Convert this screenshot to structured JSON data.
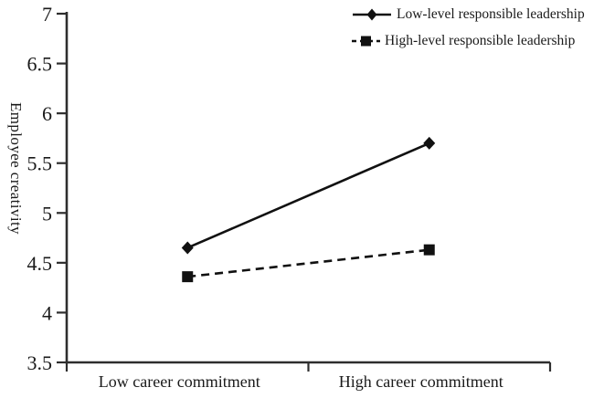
{
  "figure": {
    "background": "#ffffff",
    "ink_color": "#1a1a1a",
    "axis_color": "#2e2e2e"
  },
  "chart_data": {
    "type": "line",
    "title": "",
    "xlabel": "",
    "ylabel": "Employee creativity",
    "ylim": [
      3.5,
      7
    ],
    "yticks": [
      3.5,
      4,
      4.5,
      5,
      5.5,
      6,
      6.5,
      7
    ],
    "categories": [
      "Low career commitment",
      "High career commitment"
    ],
    "series": [
      {
        "name": "Low-level responsible leadership",
        "values": [
          4.65,
          5.7
        ],
        "line_style": "solid",
        "marker": "diamond",
        "color": "#111111"
      },
      {
        "name": "High-level responsible leadership",
        "values": [
          4.36,
          4.63
        ],
        "line_style": "dashed",
        "marker": "square",
        "color": "#111111"
      }
    ],
    "legend_position": "top-right",
    "grid": false
  }
}
